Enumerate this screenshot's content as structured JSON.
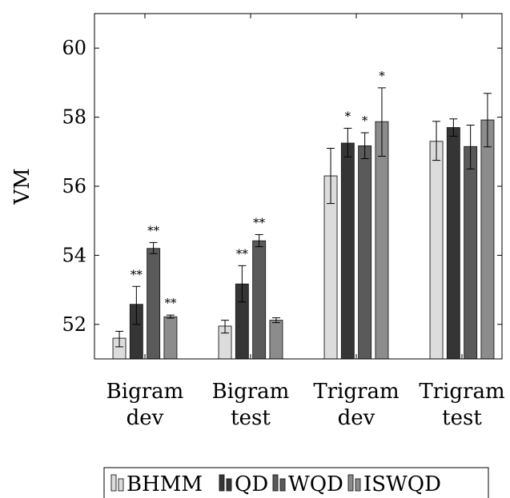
{
  "chart_data": {
    "type": "bar",
    "title": "",
    "xlabel": "",
    "ylabel": "VM",
    "ylim": [
      51.0,
      61.0
    ],
    "yticks": [
      52,
      54,
      56,
      58,
      60
    ],
    "grid": false,
    "legend_placement": "bottom",
    "categories": [
      [
        "Bigram",
        "dev"
      ],
      [
        "Bigram",
        "test"
      ],
      [
        "Trigram",
        "dev"
      ],
      [
        "Trigram",
        "test"
      ]
    ],
    "series": [
      {
        "name": "BHMM",
        "color": "#dcdcdc",
        "values": [
          51.6,
          51.95,
          56.3,
          57.3
        ],
        "err_low": [
          51.35,
          51.75,
          55.5,
          56.75
        ],
        "err_high": [
          51.8,
          52.12,
          57.1,
          57.88
        ],
        "sig": [
          "",
          "",
          "",
          ""
        ]
      },
      {
        "name": "QD",
        "color": "#353535",
        "values": [
          52.58,
          53.17,
          57.25,
          57.7
        ],
        "err_low": [
          52.0,
          52.65,
          56.85,
          57.45
        ],
        "err_high": [
          53.1,
          53.7,
          57.68,
          57.95
        ],
        "sig": [
          "**",
          "**",
          "*",
          ""
        ]
      },
      {
        "name": "WQD",
        "color": "#5a5a5a",
        "values": [
          54.2,
          54.42,
          57.17,
          57.15
        ],
        "err_low": [
          54.05,
          54.25,
          56.8,
          56.5
        ],
        "err_high": [
          54.37,
          54.6,
          57.55,
          57.77
        ],
        "sig": [
          "**",
          "**",
          "*",
          ""
        ]
      },
      {
        "name": "ISWQD",
        "color": "#8c8c8c",
        "values": [
          52.22,
          52.12,
          57.87,
          57.92
        ],
        "err_low": [
          52.18,
          52.05,
          56.87,
          57.14
        ],
        "err_high": [
          52.27,
          52.19,
          58.85,
          58.69
        ],
        "sig": [
          "**",
          "",
          "*",
          ""
        ]
      }
    ]
  }
}
